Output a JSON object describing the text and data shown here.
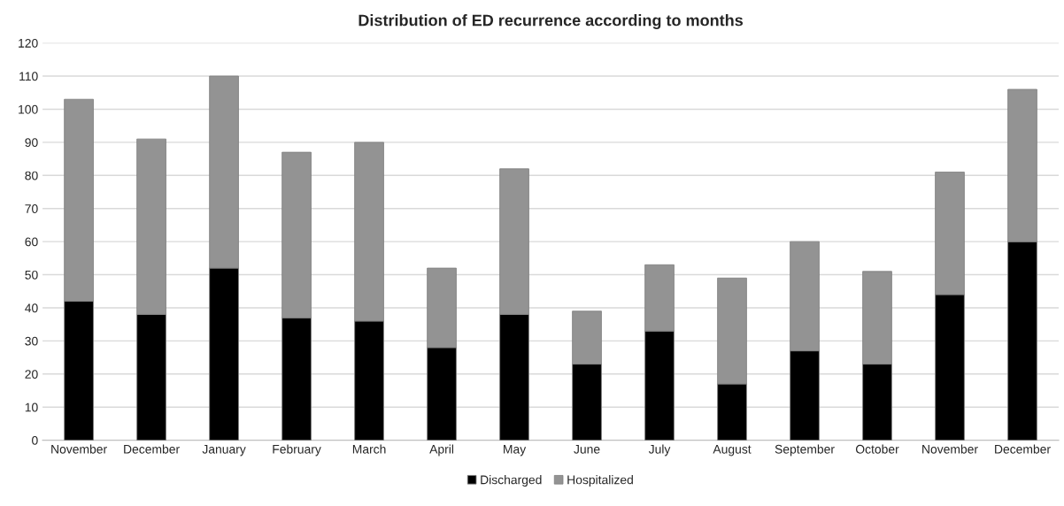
{
  "chart_data": {
    "type": "bar",
    "title": "Distribution of ED recurrence according to months",
    "categories": [
      "November",
      "December",
      "January",
      "February",
      "March",
      "April",
      "May",
      "June",
      "July",
      "August",
      "September",
      "October",
      "November",
      "December"
    ],
    "series": [
      {
        "name": "Discharged",
        "color": "#000000",
        "values": [
          42,
          38,
          52,
          37,
          36,
          28,
          38,
          23,
          33,
          17,
          27,
          23,
          44,
          60
        ]
      },
      {
        "name": "Hospitalized",
        "color": "#939393",
        "values": [
          61,
          53,
          58,
          50,
          54,
          24,
          44,
          16,
          20,
          32,
          33,
          28,
          37,
          46
        ]
      }
    ],
    "stacked": true,
    "ylim": [
      0,
      120
    ],
    "yticks": [
      0,
      10,
      20,
      30,
      40,
      50,
      60,
      70,
      80,
      90,
      100,
      110,
      120
    ],
    "grid": "y",
    "legend": "bottom"
  }
}
